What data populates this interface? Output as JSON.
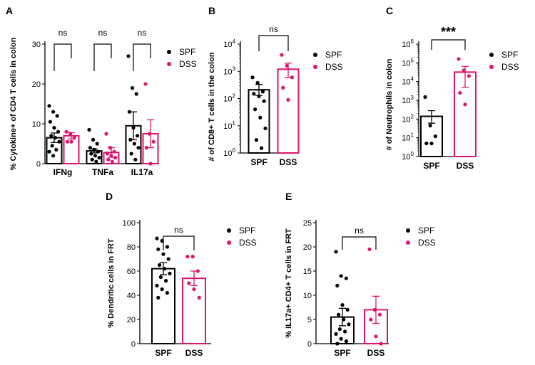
{
  "colors": {
    "spf": "#000000",
    "dss": "#e0136e"
  },
  "legend": {
    "spf": "SPF",
    "dss": "DSS"
  },
  "chart_data": [
    {
      "panel": "A",
      "type": "bar",
      "ylabel": "% Cytokine+ of CD4 T cells in colon",
      "ylim": [
        0,
        30
      ],
      "yticks": [
        "0",
        "10",
        "20",
        "30"
      ],
      "categories": [
        "IFNg",
        "TNFa",
        "IL17a"
      ],
      "series": [
        {
          "name": "SPF",
          "values": [
            6.5,
            3.2,
            9.5
          ],
          "errors": [
            1.2,
            0.5,
            3.5
          ],
          "points": [
            [
              14.5,
              13,
              12,
              10.5,
              9,
              8,
              7,
              6.5,
              5.5,
              4.5,
              3.5,
              3,
              2
            ],
            [
              8.5,
              6,
              5,
              4,
              3.5,
              3,
              2.5,
              2,
              1.5,
              1,
              0.5
            ],
            [
              27,
              19,
              17.5,
              13,
              9,
              7,
              6,
              5,
              4,
              2.5,
              1
            ]
          ]
        },
        {
          "name": "DSS",
          "values": [
            7.0,
            2.8,
            7.5
          ],
          "errors": [
            0.8,
            1.2,
            3.5
          ],
          "points": [
            [
              8,
              7.5,
              6.5,
              5.5,
              5.5
            ],
            [
              7.5,
              4,
              3,
              2.5,
              2,
              1.5,
              1,
              0.5
            ],
            [
              20,
              7.5,
              5.5,
              4,
              0
            ]
          ]
        }
      ],
      "annotations": [
        "ns",
        "ns",
        "ns"
      ]
    },
    {
      "panel": "B",
      "type": "bar",
      "ylabel": "# of CD8+ T cells in the colon",
      "yscale": "log",
      "ylim": [
        1,
        10000
      ],
      "yticks": [
        {
          "base": "10",
          "exp": "0"
        },
        {
          "base": "10",
          "exp": "1"
        },
        {
          "base": "10",
          "exp": "2"
        },
        {
          "base": "10",
          "exp": "3"
        },
        {
          "base": "10",
          "exp": "4"
        }
      ],
      "categories": [
        "SPF",
        "DSS"
      ],
      "values": [
        210,
        1200
      ],
      "errors": [
        [
          130,
          330
        ],
        [
          600,
          2000
        ]
      ],
      "points": [
        [
          600,
          380,
          180,
          150,
          120,
          80,
          40,
          20,
          8,
          3,
          1.5
        ],
        [
          4000,
          1600,
          600,
          250,
          90
        ]
      ],
      "annotation": "ns"
    },
    {
      "panel": "C",
      "type": "bar",
      "ylabel": "# of Neutrophils in colon",
      "yscale": "log",
      "ylim": [
        1,
        1000000
      ],
      "yticks": [
        {
          "base": "10",
          "exp": "0"
        },
        {
          "base": "10",
          "exp": "1"
        },
        {
          "base": "10",
          "exp": "2"
        },
        {
          "base": "10",
          "exp": "3"
        },
        {
          "base": "10",
          "exp": "4"
        },
        {
          "base": "10",
          "exp": "5"
        },
        {
          "base": "10",
          "exp": "6"
        }
      ],
      "categories": [
        "SPF",
        "DSS"
      ],
      "values": [
        140,
        32000
      ],
      "errors": [
        [
          60,
          280
        ],
        [
          5000,
          65000
        ]
      ],
      "points": [
        [
          1500,
          45,
          12,
          5,
          5
        ],
        [
          160000,
          40000,
          20000,
          2500,
          600
        ]
      ],
      "annotation": "***"
    },
    {
      "panel": "D",
      "type": "bar",
      "ylabel": "% Dendritic cells in FRT",
      "ylim": [
        0,
        100
      ],
      "yticks": [
        "0",
        "20",
        "40",
        "60",
        "80",
        "100"
      ],
      "categories": [
        "SPF",
        "DSS"
      ],
      "values": [
        62,
        54
      ],
      "errors": [
        5,
        6
      ],
      "points": [
        [
          87,
          85,
          80,
          78,
          74,
          70,
          65,
          62,
          58,
          55,
          52,
          48,
          45,
          42,
          38
        ],
        [
          72,
          72,
          60,
          50,
          45,
          38
        ]
      ],
      "annotation": "ns"
    },
    {
      "panel": "E",
      "type": "bar",
      "ylabel": "% IL17a+ CD4+ T cells in FRT",
      "ylim": [
        0,
        25
      ],
      "yticks": [
        "0",
        "5",
        "10",
        "15",
        "20",
        "25"
      ],
      "categories": [
        "SPF",
        "DSS"
      ],
      "values": [
        5.5,
        7.0
      ],
      "errors": [
        1.8,
        2.8
      ],
      "points": [
        [
          19,
          14,
          13.5,
          12,
          8,
          7,
          6,
          5,
          4,
          3,
          2.5,
          2,
          1,
          0.5,
          0
        ],
        [
          19.5,
          7,
          6,
          5,
          1.5,
          0
        ]
      ],
      "annotation": "ns"
    }
  ]
}
